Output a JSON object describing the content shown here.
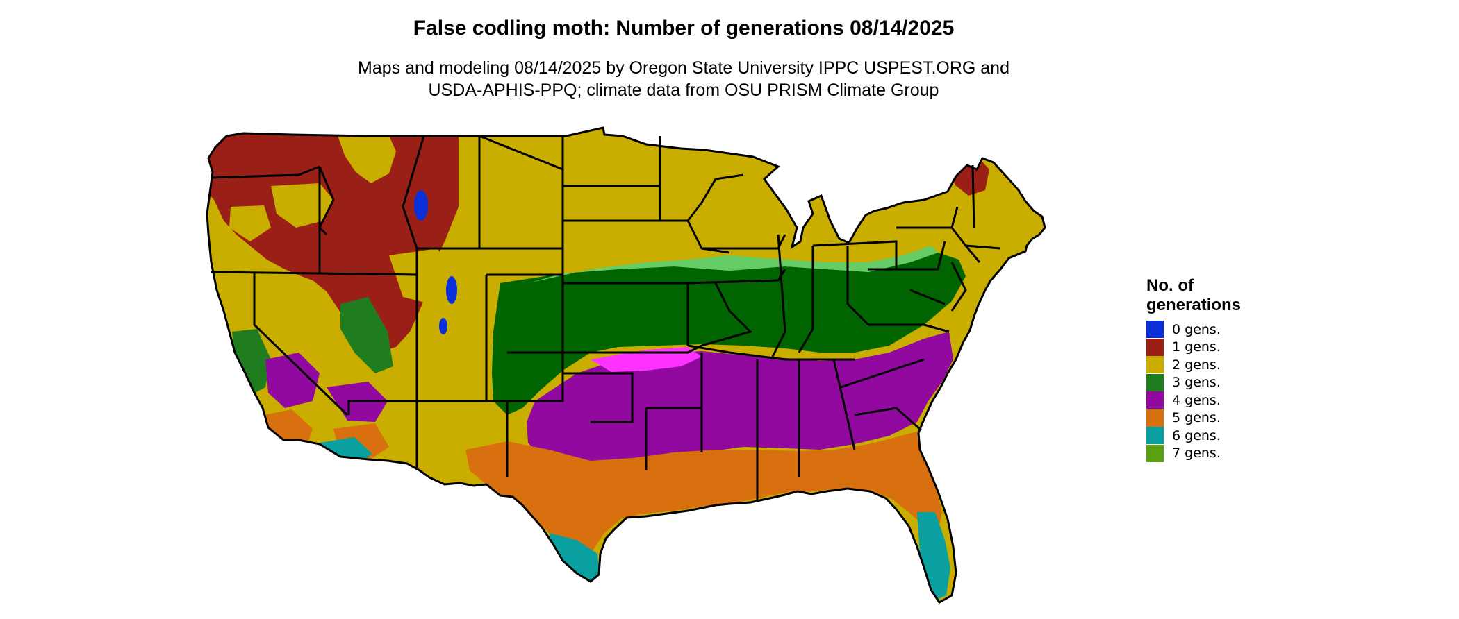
{
  "title": "False codling moth: Number of generations 08/14/2025",
  "subtitle_lines": [
    "Maps and modeling 08/14/2025 by Oregon State University IPPC USPEST.ORG and",
    "USDA-APHIS-PPQ; climate data from OSU PRISM Climate Group"
  ],
  "legend": {
    "title_lines": [
      "No. of",
      "generations"
    ],
    "items": [
      {
        "label": "0 gens.",
        "color": "#0a2fd9"
      },
      {
        "label": "1 gens.",
        "color": "#9a1f17"
      },
      {
        "label": "2 gens.",
        "color": "#c9ae00"
      },
      {
        "label": "3 gens.",
        "color": "#1f7d1f"
      },
      {
        "label": "4 gens.",
        "color": "#9209a0"
      },
      {
        "label": "5 gens.",
        "color": "#d8700f"
      },
      {
        "label": "6 gens.",
        "color": "#0aa0a0"
      },
      {
        "label": "7 gens.",
        "color": "#5aa012"
      }
    ]
  },
  "map": {
    "extent": "contiguous United States",
    "background": "#ffffff",
    "boundary_color": "#000000",
    "accent_colors": {
      "yellow": "#ffff00",
      "magenta": "#ff33ff",
      "light_green": "#66cc66",
      "dark_green": "#006400",
      "light_orange": "#e79a3a"
    }
  }
}
